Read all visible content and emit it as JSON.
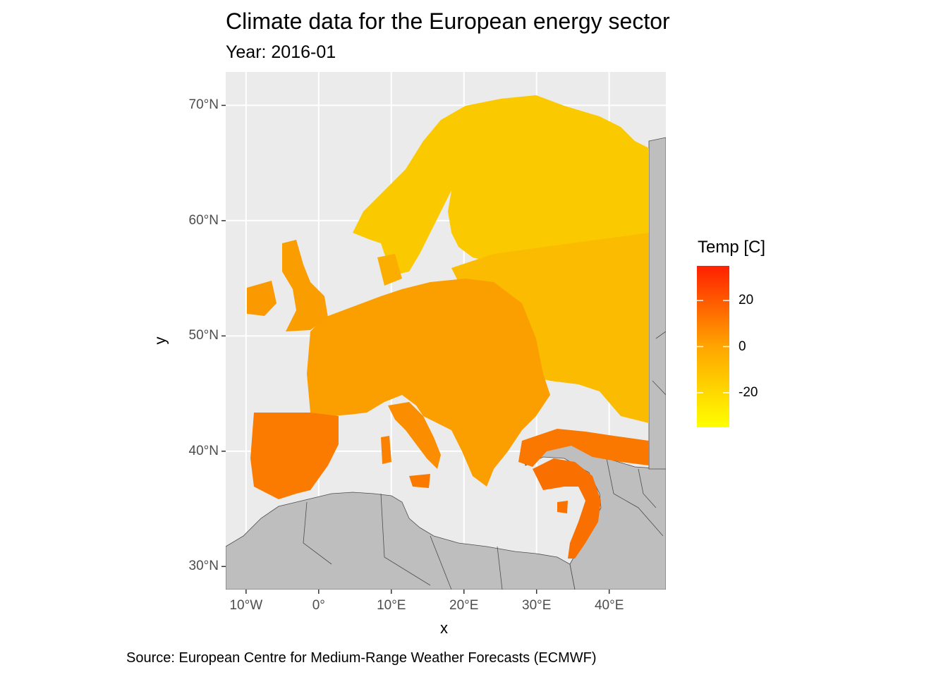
{
  "header": {
    "title": "Climate data for the European energy sector",
    "subtitle": "Year: 2016-01"
  },
  "axes": {
    "xlabel": "x",
    "ylabel": "y",
    "x_ticks": [
      {
        "value": -10,
        "label": "10°W"
      },
      {
        "value": 0,
        "label": "0°"
      },
      {
        "value": 10,
        "label": "10°E"
      },
      {
        "value": 20,
        "label": "20°E"
      },
      {
        "value": 30,
        "label": "30°E"
      },
      {
        "value": 40,
        "label": "40°E"
      }
    ],
    "y_ticks": [
      {
        "value": 30,
        "label": "30°N"
      },
      {
        "value": 40,
        "label": "40°N"
      },
      {
        "value": 50,
        "label": "50°N"
      },
      {
        "value": 60,
        "label": "60°N"
      },
      {
        "value": 70,
        "label": "70°N"
      }
    ],
    "xlim": [
      -12.8,
      47.8
    ],
    "ylim": [
      28.0,
      72.9
    ]
  },
  "legend": {
    "title": "Temp [C]",
    "range": [
      -35,
      35
    ],
    "ticks": [
      {
        "value": 20,
        "label": "20"
      },
      {
        "value": 0,
        "label": "0"
      },
      {
        "value": -20,
        "label": "-20"
      }
    ],
    "colors": {
      "low": "#ffff00",
      "mid": "#ffa500",
      "high": "#ff2000"
    }
  },
  "colors": {
    "panel": "#ebebeb",
    "grid": "#ffffff",
    "land_no_data": "#bebebe",
    "border": "#4d4d4d"
  },
  "caption": "Source: European Centre for Medium-Range Weather Forecasts (ECMWF)"
}
